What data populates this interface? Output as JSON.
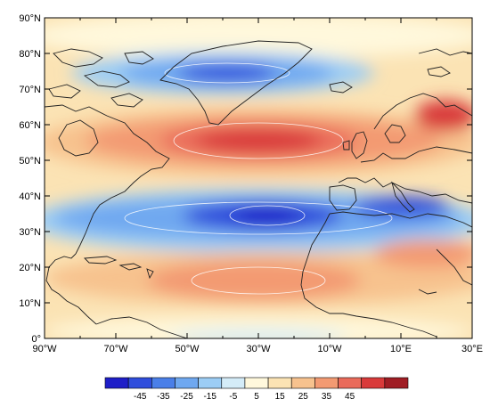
{
  "map": {
    "lat_labels": [
      "90°N",
      "80°N",
      "70°N",
      "60°N",
      "50°N",
      "40°N",
      "30°N",
      "20°N",
      "10°N",
      "0°"
    ],
    "lon_labels": [
      "90°W",
      "70°W",
      "50°W",
      "30°W",
      "10°W",
      "10°E",
      "30°E"
    ],
    "lon_range": [
      -90,
      30
    ],
    "lat_range": [
      0,
      90
    ],
    "field_features": [
      {
        "lon": -30,
        "lat": 55,
        "value": 42
      },
      {
        "lon": -28,
        "lat": 34,
        "value": -47
      },
      {
        "lon": -35,
        "lat": 16,
        "value": 33
      },
      {
        "lon": -25,
        "lat": 73,
        "value": -38
      }
    ]
  },
  "colorbar": {
    "labels": [
      "-45",
      "-35",
      "-25",
      "-15",
      "-5",
      "5",
      "15",
      "25",
      "35",
      "45"
    ],
    "colors": [
      "#1e1ec8",
      "#2f4ddc",
      "#4a7fe8",
      "#6fa8f0",
      "#9ccdf5",
      "#d4ecf8",
      "#fff8dc",
      "#fbe3b4",
      "#f7c28e",
      "#f39a72",
      "#ea6a5a",
      "#d93a3a",
      "#a01d24"
    ]
  }
}
